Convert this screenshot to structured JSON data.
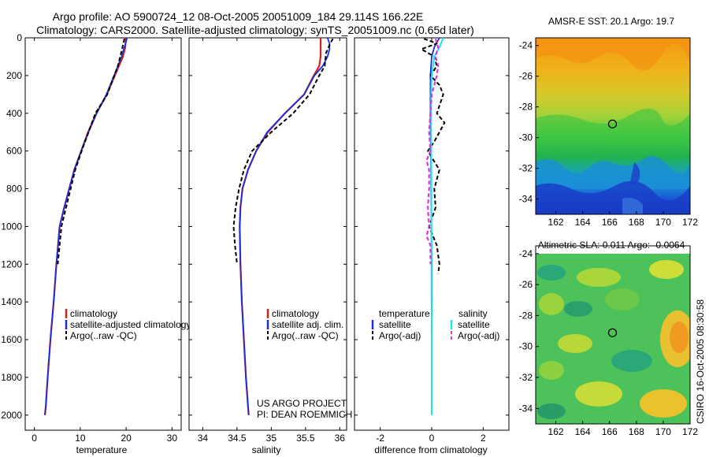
{
  "header": {
    "title": "Argo profile: AO 5900724_12 08-Oct-2005 20051009_184 29.114S 166.22E",
    "subtitle": "Climatology: CARS2000. Satellite-adjusted climatology: synTS_20051009.nc (0.65d later)"
  },
  "colors": {
    "climatology": "#d42020",
    "satellite": "#1c2fd6",
    "argo": "#000000",
    "cyan": "#19e6ee",
    "magenta": "#e234d6"
  },
  "chart_data": [
    {
      "type": "line",
      "xlabel": "temperature",
      "ylabel": "",
      "xlim": [
        -2,
        32
      ],
      "ylim": [
        2080,
        0
      ],
      "xticks": [
        0,
        10,
        20,
        30
      ],
      "yticks": [
        0,
        200,
        400,
        600,
        800,
        1000,
        1200,
        1400,
        1600,
        1800,
        2000
      ],
      "legend": [
        "climatology",
        "satellite-adjusted climatology",
        "Argo(..raw -QC)"
      ],
      "series": [
        {
          "name": "climatology",
          "x": [
            19.9,
            19.9,
            19.8,
            19.3,
            18.4,
            15.8,
            13.5,
            11.7,
            10.2,
            8.7,
            7.6,
            6.5,
            5.5,
            4.8,
            4.2,
            3.5,
            2.9,
            2.5,
            2.3
          ],
          "y": [
            0,
            20,
            50,
            100,
            150,
            300,
            400,
            500,
            600,
            700,
            800,
            900,
            1000,
            1200,
            1400,
            1600,
            1800,
            1950,
            2000
          ]
        },
        {
          "name": "satellite-adjusted climatology",
          "x": [
            20.2,
            20.0,
            19.6,
            19.0,
            18.2,
            15.7,
            13.6,
            11.8,
            10.2,
            8.7,
            7.6,
            6.5,
            5.5,
            4.8,
            4.2,
            3.5,
            2.9,
            2.5,
            2.3
          ],
          "y": [
            0,
            20,
            50,
            100,
            150,
            300,
            400,
            500,
            600,
            700,
            800,
            900,
            1000,
            1200,
            1400,
            1600,
            1800,
            1950,
            2000
          ]
        },
        {
          "name": "Argo(..raw -QC)",
          "x": [
            19.6,
            19.4,
            18.9,
            18.2,
            15.9,
            13.3,
            11.8,
            10.3,
            8.9,
            7.9,
            6.9,
            5.9,
            5.1
          ],
          "y": [
            5,
            30,
            80,
            150,
            300,
            400,
            500,
            600,
            700,
            800,
            900,
            1000,
            1200
          ]
        }
      ]
    },
    {
      "type": "line",
      "xlabel": "salinity",
      "ylabel": "",
      "xlim": [
        33.8,
        36.1
      ],
      "ylim": [
        2080,
        0
      ],
      "xticks": [
        34,
        34.5,
        35,
        35.5,
        36
      ],
      "xticklabels": [
        "34",
        "34.5",
        "35",
        "35.5",
        "36"
      ],
      "legend": [
        "climatology",
        "satellite adj. clim.",
        "Argo(..raw -QC)"
      ],
      "annotations": [
        "US ARGO PROJECT",
        "PI: DEAN ROEMMICH"
      ],
      "series": [
        {
          "name": "climatology",
          "x": [
            35.72,
            35.72,
            35.72,
            35.72,
            35.7,
            35.62,
            35.48,
            35.2,
            34.95,
            34.78,
            34.66,
            34.58,
            34.55,
            34.54,
            34.55,
            34.57,
            34.6,
            34.63,
            34.66,
            34.67
          ],
          "y": [
            0,
            30,
            60,
            100,
            150,
            200,
            300,
            400,
            500,
            600,
            700,
            800,
            900,
            1000,
            1200,
            1400,
            1600,
            1800,
            1950,
            2000
          ]
        },
        {
          "name": "satellite adj. clim.",
          "x": [
            35.82,
            35.85,
            35.85,
            35.82,
            35.75,
            35.63,
            35.48,
            35.2,
            34.94,
            34.78,
            34.66,
            34.58,
            34.55,
            34.54,
            34.55,
            34.57,
            34.6,
            34.63,
            34.66,
            34.67
          ],
          "y": [
            0,
            30,
            60,
            100,
            150,
            200,
            300,
            400,
            500,
            600,
            700,
            800,
            900,
            1000,
            1200,
            1400,
            1600,
            1800,
            1950,
            2000
          ]
        },
        {
          "name": "Argo(..raw -QC)",
          "x": [
            35.9,
            35.86,
            35.8,
            35.78,
            35.7,
            35.56,
            35.32,
            35.0,
            34.72,
            34.6,
            34.53,
            34.48,
            34.45,
            34.47,
            34.5
          ],
          "y": [
            5,
            30,
            80,
            150,
            200,
            300,
            400,
            500,
            600,
            700,
            800,
            900,
            1000,
            1100,
            1200
          ]
        }
      ]
    },
    {
      "type": "line",
      "xlabel": "difference from climatology",
      "ylabel": "",
      "xlim": [
        -3,
        3
      ],
      "ylim": [
        2080,
        0
      ],
      "xticks": [
        -2,
        0,
        2
      ],
      "legend_groups": [
        {
          "header": "temperature",
          "items": [
            "satellite",
            "Argo(-adj)"
          ]
        },
        {
          "header": "salinity",
          "items": [
            "satellite",
            "Argo(-adj)"
          ]
        }
      ],
      "series": [
        {
          "name": "temperature satellite",
          "x": [
            0.3,
            0.1,
            0.0,
            -0.05,
            -0.05,
            -0.05,
            -0.03,
            -0.02,
            0.0,
            0.0
          ],
          "y": [
            0,
            50,
            100,
            200,
            300,
            400,
            600,
            800,
            1200,
            1800
          ]
        },
        {
          "name": "temperature Argo(-adj)",
          "x": [
            -0.3,
            0.2,
            -0.4,
            0.1,
            0.2,
            -0.05,
            0.3,
            0.45,
            0.2,
            0.5,
            0.3,
            0.1,
            -0.15,
            0.3,
            0.1,
            0.15,
            -0.1,
            0.2,
            0.3,
            0.25
          ],
          "y": [
            5,
            30,
            60,
            100,
            150,
            200,
            250,
            300,
            400,
            450,
            500,
            550,
            600,
            700,
            800,
            900,
            1000,
            1100,
            1200,
            1250
          ]
        },
        {
          "name": "salinity satellite",
          "x": [
            0.45,
            0.3,
            0.1,
            0.0,
            -0.02,
            -0.02,
            -0.01,
            -0.01,
            0.0,
            0.0
          ],
          "y": [
            0,
            50,
            100,
            200,
            300,
            500,
            800,
            1200,
            1600,
            2000
          ]
        },
        {
          "name": "salinity Argo(-adj)",
          "x": [
            0.15,
            0.25,
            0.15,
            0.25,
            0.2,
            0.0,
            -0.1,
            -0.05,
            -0.2,
            -0.1,
            -0.1,
            -0.15,
            -0.1,
            -0.2,
            -0.05,
            -0.05
          ],
          "y": [
            5,
            50,
            100,
            150,
            200,
            300,
            500,
            600,
            650,
            700,
            800,
            900,
            1000,
            1050,
            1100,
            1200
          ]
        }
      ]
    },
    {
      "type": "heatmap",
      "title": "AMSR-E SST: 20.1 Argo: 19.7",
      "xlim": [
        160.5,
        172
      ],
      "ylim": [
        -35,
        -23.5
      ],
      "xticks": [
        162,
        164,
        166,
        168,
        170,
        172
      ],
      "yticks": [
        -24,
        -26,
        -28,
        -30,
        -32,
        -34
      ],
      "marker": {
        "lon": 166.22,
        "lat": -29.114
      }
    },
    {
      "type": "heatmap",
      "title": "Altimetric SLA: 0.011 Argo: -0.0064",
      "xlim": [
        160.5,
        172
      ],
      "ylim": [
        -35,
        -23.5
      ],
      "xticks": [
        162,
        164,
        166,
        168,
        170,
        172
      ],
      "yticks": [
        -24,
        -26,
        -28,
        -30,
        -32,
        -34
      ],
      "marker": {
        "lon": 166.22,
        "lat": -29.114
      }
    }
  ],
  "footer": {
    "stamp": "CSIRO 16-Oct-2005 08:30:58"
  }
}
